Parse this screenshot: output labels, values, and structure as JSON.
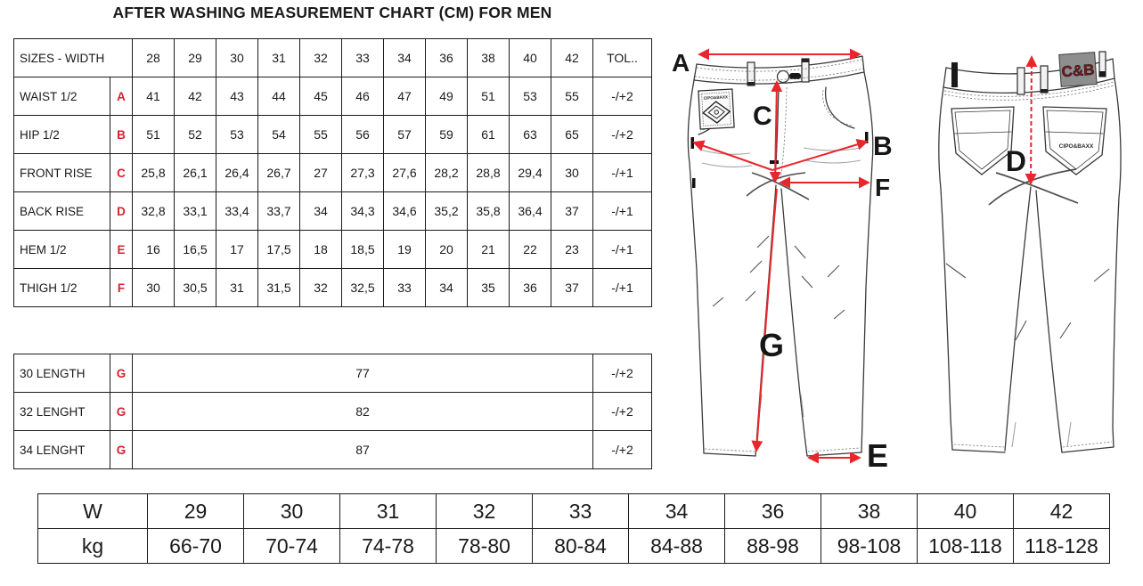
{
  "title": "AFTER WASHING MEASUREMENT CHART (CM) FOR MEN",
  "colors": {
    "arrow_red": "#e8262c",
    "letter_red": "#d8232e",
    "table_border": "#1b1b1b",
    "patch_gray": "#8e8e8e",
    "patch_text_red": "#7a161d"
  },
  "measurement_table": {
    "header": {
      "label": "SIZES - WIDTH",
      "sizes": [
        "28",
        "29",
        "30",
        "31",
        "32",
        "33",
        "34",
        "36",
        "38",
        "40",
        "42"
      ],
      "tol": "TOL.."
    },
    "rows": [
      {
        "label": "WAIST 1/2",
        "letter": "A",
        "values": [
          "41",
          "42",
          "43",
          "44",
          "45",
          "46",
          "47",
          "49",
          "51",
          "53",
          "55"
        ],
        "tol": "-/+2"
      },
      {
        "label": "HIP 1/2",
        "letter": "B",
        "values": [
          "51",
          "52",
          "53",
          "54",
          "55",
          "56",
          "57",
          "59",
          "61",
          "63",
          "65"
        ],
        "tol": "-/+2"
      },
      {
        "label": "FRONT RISE",
        "letter": "C",
        "values": [
          "25,8",
          "26,1",
          "26,4",
          "26,7",
          "27",
          "27,3",
          "27,6",
          "28,2",
          "28,8",
          "29,4",
          "30"
        ],
        "tol": "-/+1"
      },
      {
        "label": "BACK RISE",
        "letter": "D",
        "values": [
          "32,8",
          "33,1",
          "33,4",
          "33,7",
          "34",
          "34,3",
          "34,6",
          "35,2",
          "35,8",
          "36,4",
          "37"
        ],
        "tol": "-/+1"
      },
      {
        "label": "HEM 1/2",
        "letter": "E",
        "values": [
          "16",
          "16,5",
          "17",
          "17,5",
          "18",
          "18,5",
          "19",
          "20",
          "21",
          "22",
          "23"
        ],
        "tol": "-/+1"
      },
      {
        "label": "THIGH 1/2",
        "letter": "F",
        "values": [
          "30",
          "30,5",
          "31",
          "31,5",
          "32",
          "32,5",
          "33",
          "34",
          "35",
          "36",
          "37"
        ],
        "tol": "-/+1"
      }
    ]
  },
  "length_table": {
    "rows": [
      {
        "label": "30 LENGTH",
        "letter": "G",
        "value": "77",
        "tol": "-/+2"
      },
      {
        "label": "32 LENGHT",
        "letter": "G",
        "value": "82",
        "tol": "-/+2"
      },
      {
        "label": "34 LENGHT",
        "letter": "G",
        "value": "87",
        "tol": "-/+2"
      }
    ]
  },
  "weight_table": {
    "width_row": {
      "label": "W",
      "values": [
        "29",
        "30",
        "31",
        "32",
        "33",
        "34",
        "36",
        "38",
        "40",
        "42"
      ]
    },
    "kg_row": {
      "label": "kg",
      "values": [
        "66-70",
        "70-74",
        "74-78",
        "78-80",
        "80-84",
        "84-88",
        "88-98",
        "98-108",
        "108-118",
        "118-128"
      ]
    }
  },
  "diagram": {
    "front": {
      "a": "A",
      "b": "B",
      "c": "C",
      "e": "E",
      "f": "F",
      "g": "G",
      "patch_text": "CIPO&BAXX"
    },
    "back": {
      "d": "D",
      "brand_patch": "C&B",
      "pocket_brand": "CIPO&BAXX"
    }
  }
}
